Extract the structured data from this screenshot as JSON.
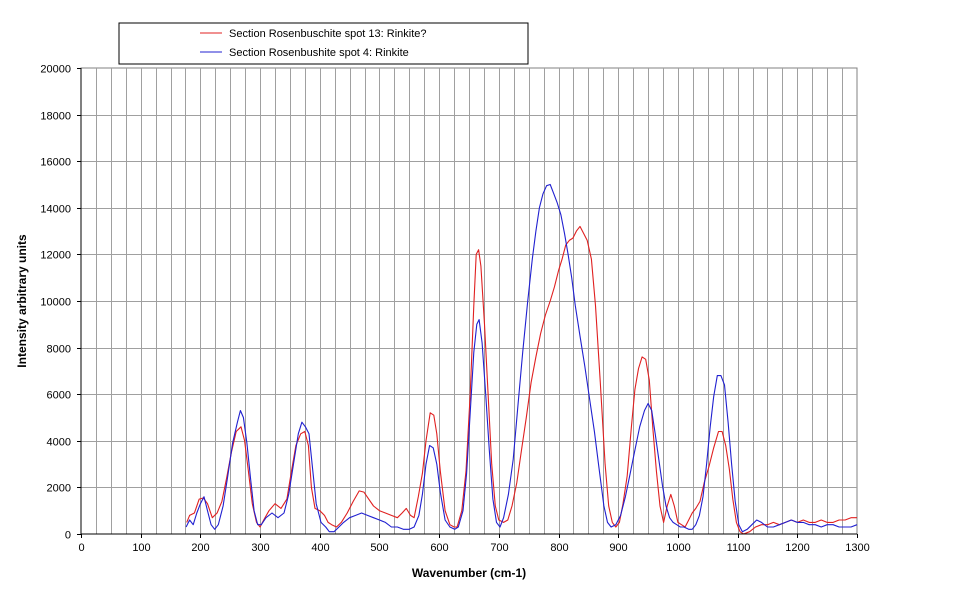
{
  "chart_data": {
    "type": "line",
    "title": "",
    "xlabel": "Wavenumber (cm-1)",
    "ylabel": "Intensity arbitrary units",
    "xlim": [
      0,
      1300
    ],
    "ylim": [
      0,
      20000
    ],
    "x_ticks": [
      0,
      100,
      200,
      300,
      400,
      500,
      600,
      700,
      800,
      900,
      1000,
      1100,
      1200,
      1300
    ],
    "y_ticks": [
      0,
      2000,
      4000,
      6000,
      8000,
      10000,
      12000,
      14000,
      16000,
      18000,
      20000
    ],
    "x_minor_step": 25,
    "grid": true,
    "legend_position": "top",
    "series": [
      {
        "name": "Section Rosenbuschite spot 13: Rinkite?",
        "color": "#e02020",
        "points": [
          [
            177,
            500
          ],
          [
            182,
            800
          ],
          [
            190,
            900
          ],
          [
            198,
            1500
          ],
          [
            205,
            1550
          ],
          [
            212,
            1300
          ],
          [
            220,
            700
          ],
          [
            228,
            900
          ],
          [
            236,
            1400
          ],
          [
            244,
            2400
          ],
          [
            252,
            3500
          ],
          [
            260,
            4400
          ],
          [
            268,
            4600
          ],
          [
            274,
            4000
          ],
          [
            280,
            2800
          ],
          [
            287,
            1300
          ],
          [
            294,
            500
          ],
          [
            300,
            300
          ],
          [
            306,
            600
          ],
          [
            315,
            1000
          ],
          [
            325,
            1300
          ],
          [
            335,
            1100
          ],
          [
            345,
            1500
          ],
          [
            352,
            2600
          ],
          [
            360,
            3800
          ],
          [
            368,
            4300
          ],
          [
            375,
            4400
          ],
          [
            381,
            3800
          ],
          [
            386,
            2000
          ],
          [
            392,
            1100
          ],
          [
            400,
            1000
          ],
          [
            408,
            800
          ],
          [
            414,
            500
          ],
          [
            420,
            400
          ],
          [
            428,
            300
          ],
          [
            436,
            500
          ],
          [
            446,
            900
          ],
          [
            456,
            1400
          ],
          [
            466,
            1850
          ],
          [
            474,
            1800
          ],
          [
            482,
            1500
          ],
          [
            490,
            1200
          ],
          [
            500,
            1000
          ],
          [
            510,
            900
          ],
          [
            520,
            800
          ],
          [
            530,
            700
          ],
          [
            538,
            900
          ],
          [
            545,
            1100
          ],
          [
            552,
            800
          ],
          [
            558,
            700
          ],
          [
            565,
            1600
          ],
          [
            572,
            2600
          ],
          [
            578,
            4000
          ],
          [
            585,
            5200
          ],
          [
            591,
            5100
          ],
          [
            596,
            4300
          ],
          [
            602,
            2700
          ],
          [
            610,
            1000
          ],
          [
            618,
            400
          ],
          [
            625,
            300
          ],
          [
            630,
            300
          ],
          [
            638,
            1000
          ],
          [
            645,
            2700
          ],
          [
            652,
            6000
          ],
          [
            658,
            9800
          ],
          [
            662,
            12000
          ],
          [
            666,
            12200
          ],
          [
            670,
            11500
          ],
          [
            676,
            9000
          ],
          [
            682,
            6000
          ],
          [
            688,
            3000
          ],
          [
            694,
            1200
          ],
          [
            700,
            600
          ],
          [
            708,
            500
          ],
          [
            715,
            600
          ],
          [
            722,
            1200
          ],
          [
            730,
            2200
          ],
          [
            738,
            3600
          ],
          [
            746,
            5000
          ],
          [
            754,
            6500
          ],
          [
            762,
            7600
          ],
          [
            770,
            8600
          ],
          [
            778,
            9400
          ],
          [
            786,
            10000
          ],
          [
            793,
            10600
          ],
          [
            800,
            11300
          ],
          [
            806,
            11800
          ],
          [
            812,
            12400
          ],
          [
            818,
            12600
          ],
          [
            824,
            12700
          ],
          [
            830,
            13000
          ],
          [
            836,
            13200
          ],
          [
            842,
            12900
          ],
          [
            848,
            12600
          ],
          [
            855,
            11800
          ],
          [
            862,
            9800
          ],
          [
            870,
            6500
          ],
          [
            878,
            3000
          ],
          [
            884,
            1200
          ],
          [
            890,
            500
          ],
          [
            896,
            300
          ],
          [
            902,
            500
          ],
          [
            908,
            1300
          ],
          [
            915,
            2500
          ],
          [
            922,
            4600
          ],
          [
            928,
            6200
          ],
          [
            934,
            7100
          ],
          [
            940,
            7600
          ],
          [
            946,
            7500
          ],
          [
            952,
            6600
          ],
          [
            958,
            4500
          ],
          [
            964,
            2700
          ],
          [
            970,
            1200
          ],
          [
            976,
            500
          ],
          [
            982,
            1200
          ],
          [
            988,
            1700
          ],
          [
            994,
            1200
          ],
          [
            1000,
            500
          ],
          [
            1006,
            400
          ],
          [
            1012,
            300
          ],
          [
            1018,
            600
          ],
          [
            1024,
            900
          ],
          [
            1030,
            1100
          ],
          [
            1037,
            1400
          ],
          [
            1044,
            2200
          ],
          [
            1052,
            2900
          ],
          [
            1060,
            3700
          ],
          [
            1068,
            4400
          ],
          [
            1074,
            4400
          ],
          [
            1080,
            3800
          ],
          [
            1086,
            2800
          ],
          [
            1092,
            1500
          ],
          [
            1098,
            500
          ],
          [
            1104,
            100
          ],
          [
            1110,
            0
          ],
          [
            1120,
            100
          ],
          [
            1130,
            300
          ],
          [
            1140,
            400
          ],
          [
            1150,
            400
          ],
          [
            1160,
            500
          ],
          [
            1170,
            400
          ],
          [
            1180,
            500
          ],
          [
            1190,
            600
          ],
          [
            1200,
            500
          ],
          [
            1210,
            600
          ],
          [
            1220,
            500
          ],
          [
            1230,
            500
          ],
          [
            1240,
            600
          ],
          [
            1250,
            500
          ],
          [
            1260,
            500
          ],
          [
            1270,
            600
          ],
          [
            1280,
            600
          ],
          [
            1290,
            700
          ],
          [
            1300,
            700
          ]
        ]
      },
      {
        "name": "Section Rosenbushite spot 4: Rinkite",
        "color": "#2020d0",
        "points": [
          [
            176,
            300
          ],
          [
            182,
            600
          ],
          [
            188,
            400
          ],
          [
            194,
            900
          ],
          [
            200,
            1300
          ],
          [
            206,
            1600
          ],
          [
            212,
            1000
          ],
          [
            218,
            400
          ],
          [
            224,
            200
          ],
          [
            230,
            400
          ],
          [
            238,
            1200
          ],
          [
            246,
            2500
          ],
          [
            254,
            3900
          ],
          [
            262,
            4800
          ],
          [
            267,
            5300
          ],
          [
            272,
            5000
          ],
          [
            278,
            3900
          ],
          [
            284,
            2400
          ],
          [
            290,
            1000
          ],
          [
            296,
            400
          ],
          [
            302,
            400
          ],
          [
            310,
            700
          ],
          [
            320,
            900
          ],
          [
            330,
            700
          ],
          [
            340,
            900
          ],
          [
            348,
            1700
          ],
          [
            356,
            3000
          ],
          [
            364,
            4300
          ],
          [
            370,
            4800
          ],
          [
            376,
            4600
          ],
          [
            382,
            4300
          ],
          [
            388,
            2800
          ],
          [
            394,
            1300
          ],
          [
            402,
            500
          ],
          [
            410,
            300
          ],
          [
            416,
            100
          ],
          [
            424,
            100
          ],
          [
            432,
            300
          ],
          [
            440,
            500
          ],
          [
            450,
            700
          ],
          [
            460,
            800
          ],
          [
            470,
            900
          ],
          [
            480,
            800
          ],
          [
            490,
            700
          ],
          [
            500,
            600
          ],
          [
            510,
            500
          ],
          [
            520,
            300
          ],
          [
            530,
            300
          ],
          [
            540,
            200
          ],
          [
            550,
            200
          ],
          [
            558,
            300
          ],
          [
            566,
            800
          ],
          [
            572,
            1700
          ],
          [
            578,
            3000
          ],
          [
            584,
            3800
          ],
          [
            590,
            3700
          ],
          [
            596,
            3000
          ],
          [
            602,
            1800
          ],
          [
            610,
            600
          ],
          [
            618,
            300
          ],
          [
            626,
            200
          ],
          [
            632,
            300
          ],
          [
            640,
            1000
          ],
          [
            646,
            2600
          ],
          [
            652,
            5200
          ],
          [
            658,
            7800
          ],
          [
            663,
            9000
          ],
          [
            667,
            9200
          ],
          [
            672,
            8200
          ],
          [
            678,
            6000
          ],
          [
            684,
            3600
          ],
          [
            690,
            1500
          ],
          [
            696,
            500
          ],
          [
            702,
            300
          ],
          [
            708,
            700
          ],
          [
            716,
            1700
          ],
          [
            724,
            3200
          ],
          [
            732,
            5500
          ],
          [
            740,
            7800
          ],
          [
            748,
            9900
          ],
          [
            756,
            11800
          ],
          [
            762,
            13000
          ],
          [
            768,
            14000
          ],
          [
            774,
            14600
          ],
          [
            780,
            14950
          ],
          [
            786,
            15000
          ],
          [
            792,
            14600
          ],
          [
            798,
            14200
          ],
          [
            804,
            13700
          ],
          [
            810,
            12900
          ],
          [
            816,
            12000
          ],
          [
            822,
            11000
          ],
          [
            828,
            9800
          ],
          [
            836,
            8500
          ],
          [
            844,
            7200
          ],
          [
            852,
            5800
          ],
          [
            860,
            4400
          ],
          [
            868,
            2800
          ],
          [
            876,
            1200
          ],
          [
            882,
            500
          ],
          [
            888,
            300
          ],
          [
            896,
            400
          ],
          [
            904,
            800
          ],
          [
            912,
            1600
          ],
          [
            920,
            2600
          ],
          [
            928,
            3600
          ],
          [
            936,
            4600
          ],
          [
            944,
            5300
          ],
          [
            950,
            5600
          ],
          [
            956,
            5300
          ],
          [
            962,
            4300
          ],
          [
            968,
            3200
          ],
          [
            974,
            2100
          ],
          [
            980,
            1200
          ],
          [
            986,
            700
          ],
          [
            992,
            500
          ],
          [
            998,
            400
          ],
          [
            1004,
            300
          ],
          [
            1010,
            300
          ],
          [
            1018,
            200
          ],
          [
            1024,
            200
          ],
          [
            1030,
            400
          ],
          [
            1036,
            800
          ],
          [
            1042,
            1600
          ],
          [
            1048,
            3000
          ],
          [
            1054,
            4600
          ],
          [
            1060,
            5900
          ],
          [
            1066,
            6800
          ],
          [
            1072,
            6800
          ],
          [
            1078,
            6400
          ],
          [
            1084,
            4800
          ],
          [
            1090,
            3000
          ],
          [
            1096,
            1400
          ],
          [
            1102,
            400
          ],
          [
            1108,
            100
          ],
          [
            1116,
            200
          ],
          [
            1124,
            400
          ],
          [
            1132,
            600
          ],
          [
            1140,
            500
          ],
          [
            1150,
            300
          ],
          [
            1160,
            300
          ],
          [
            1170,
            400
          ],
          [
            1180,
            500
          ],
          [
            1190,
            600
          ],
          [
            1200,
            500
          ],
          [
            1210,
            500
          ],
          [
            1220,
            400
          ],
          [
            1230,
            400
          ],
          [
            1240,
            300
          ],
          [
            1250,
            400
          ],
          [
            1260,
            400
          ],
          [
            1270,
            300
          ],
          [
            1280,
            300
          ],
          [
            1290,
            300
          ],
          [
            1300,
            400
          ]
        ]
      }
    ]
  }
}
